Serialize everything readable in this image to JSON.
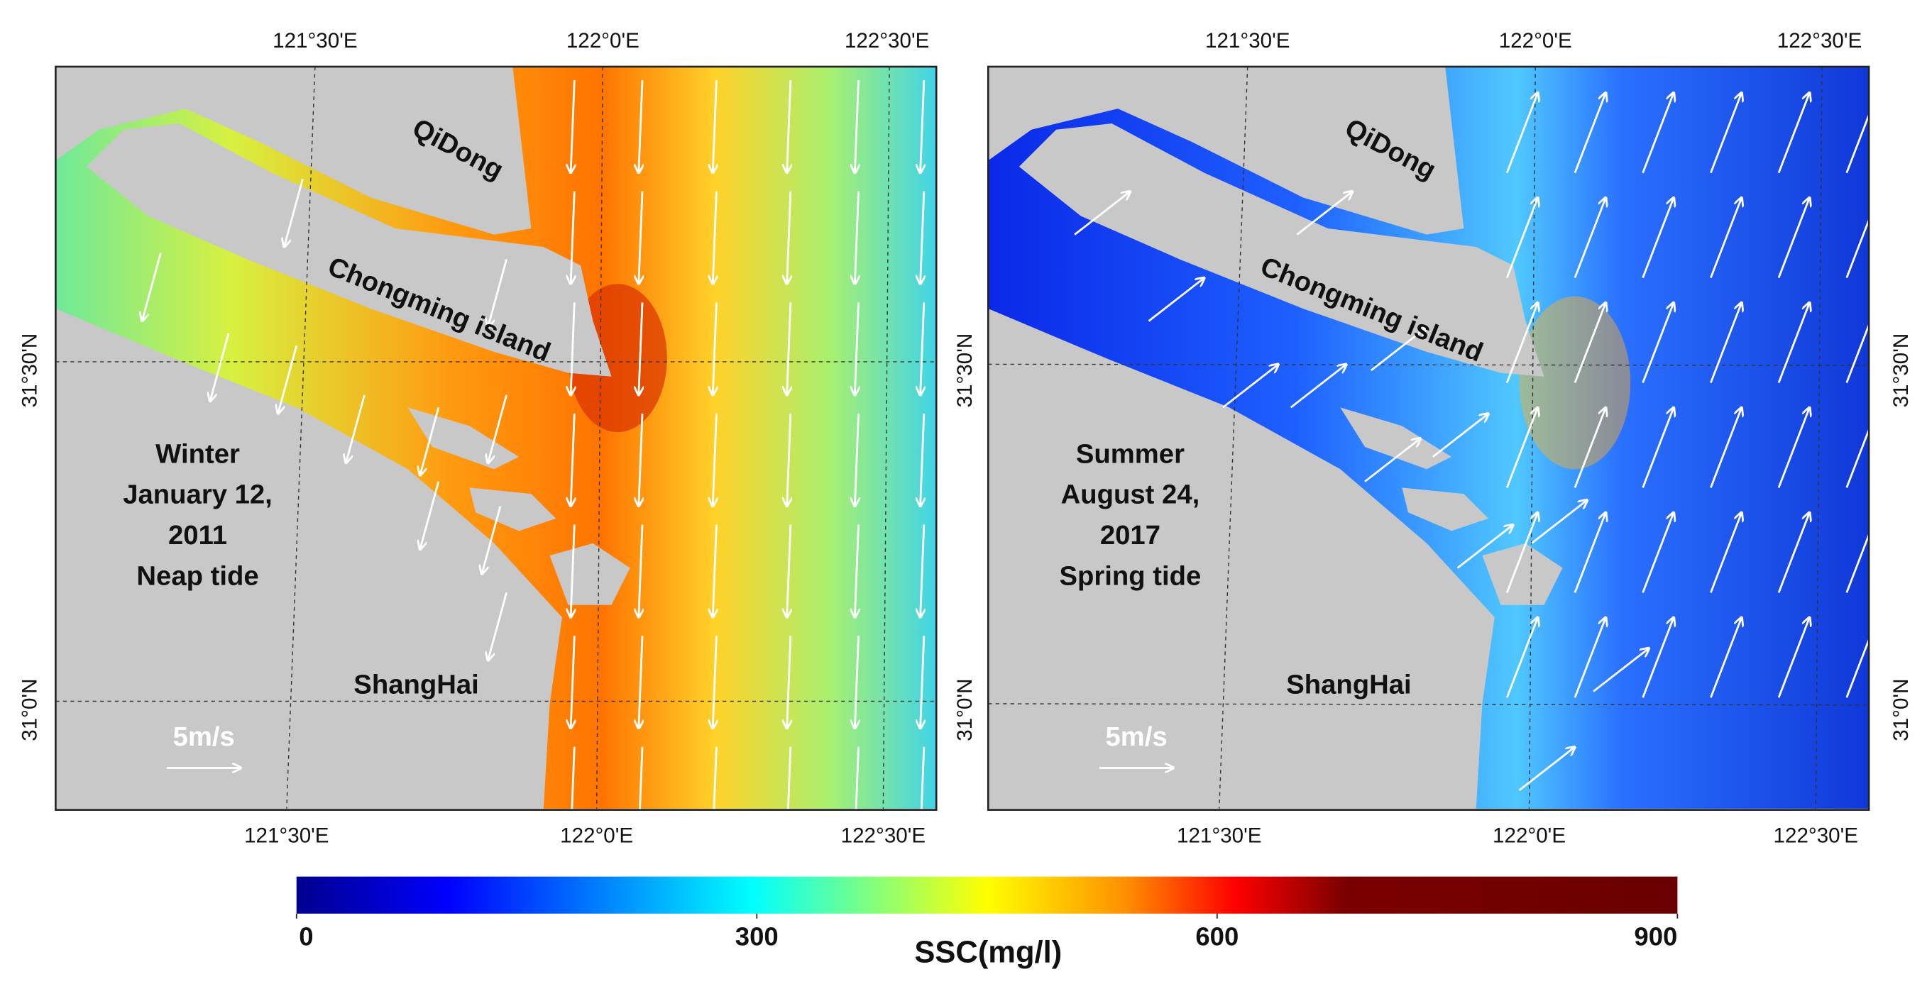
{
  "panels": [
    {
      "lon_labels_top": [
        "121°30'E",
        "122°0'E",
        "122°30'E"
      ],
      "lon_labels_bottom": [
        "121°30'E",
        "122°0'E",
        "122°30'E"
      ],
      "lat_labels": [
        "31°30'N",
        "31°0'N"
      ],
      "places": [
        "QiDong",
        "Chongming island",
        "ShangHai"
      ],
      "caption": [
        "Winter",
        "January 12,",
        "2011",
        "Neap tide"
      ],
      "scale_label": "5m/s"
    },
    {
      "lon_labels_top": [
        "121°30'E",
        "122°0'E",
        "122°30'E"
      ],
      "lon_labels_bottom": [
        "121°30'E",
        "122°0'E",
        "122°30'E"
      ],
      "lat_labels": [
        "31°30'N",
        "31°0'N"
      ],
      "places": [
        "QiDong",
        "Chongming island",
        "ShangHai"
      ],
      "caption": [
        "Summer",
        "August 24,",
        "2017",
        "Spring tide"
      ],
      "scale_label": "5m/s"
    }
  ],
  "colorbar": {
    "label": "SSC(mg/l)",
    "lim": [
      0,
      900
    ],
    "ticks": [
      0,
      300,
      600,
      900
    ]
  }
}
